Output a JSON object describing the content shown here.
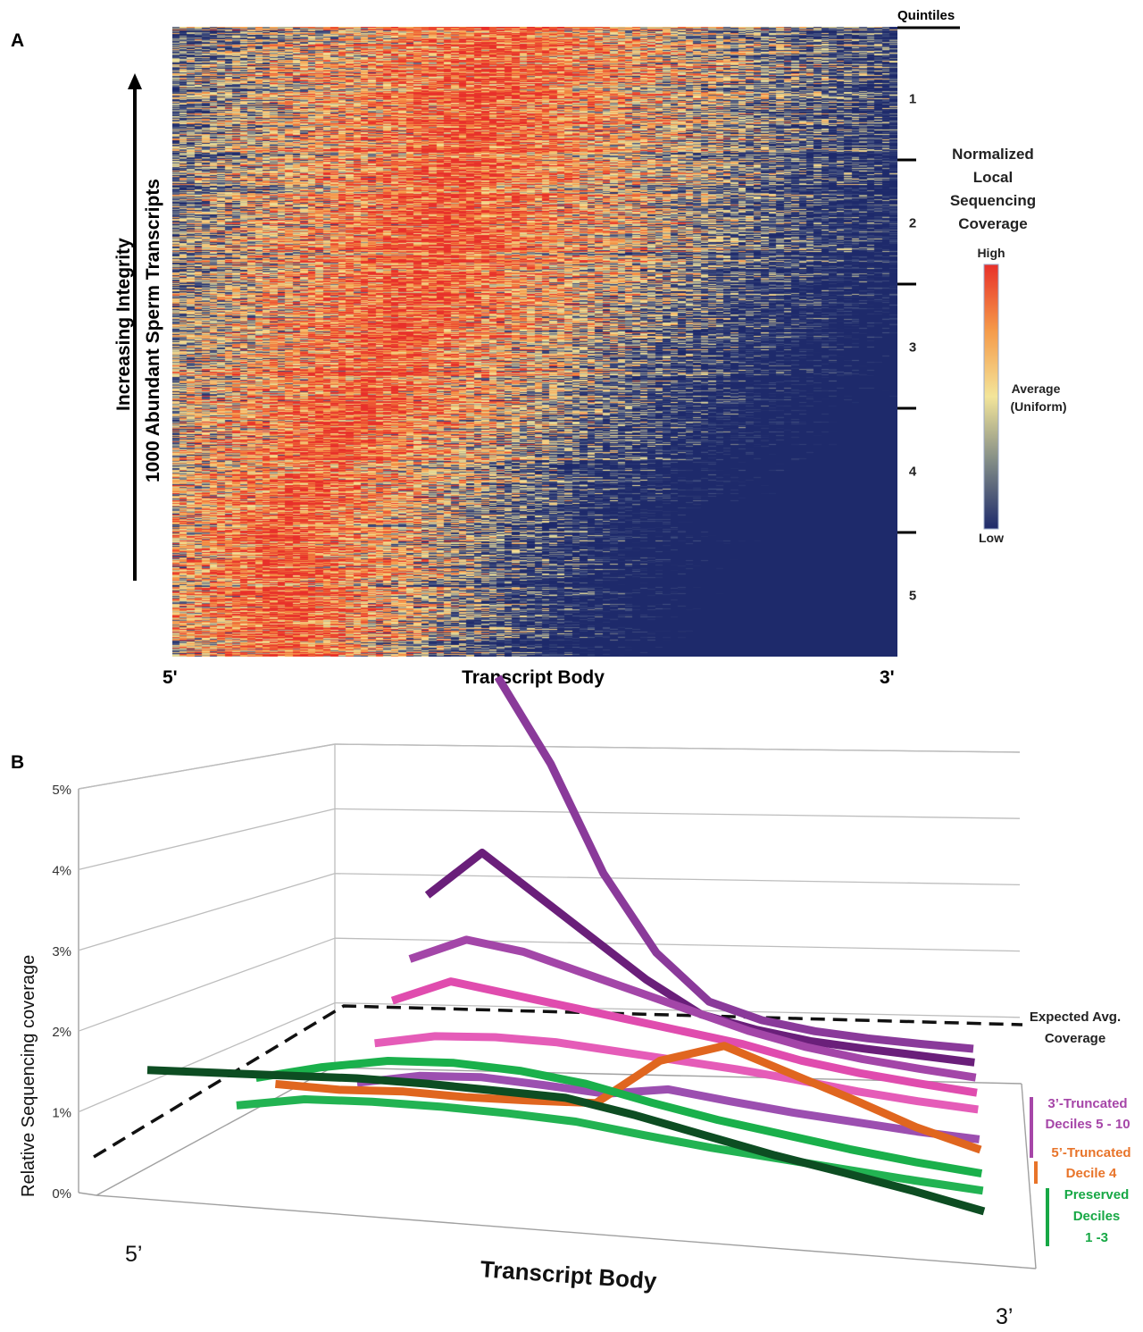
{
  "panel_a": {
    "label": "A",
    "y_axis_label_1": "Increasing Integrity",
    "y_axis_label_2": "1000 Abundant Sperm Transcripts",
    "x_label_left": "5'",
    "x_label_center": "Transcript Body",
    "x_label_right": "3'",
    "quintiles_title": "Quintiles",
    "quintile_labels": [
      "1",
      "2",
      "3",
      "4",
      "5"
    ],
    "legend_title_lines": [
      "Normalized",
      "Local",
      "Sequencing",
      "Coverage"
    ],
    "legend_high": "High",
    "legend_avg_1": "Average",
    "legend_avg_2": "(Uniform)",
    "legend_low": "Low",
    "colors": {
      "low": "#1e2a6b",
      "mid": "#f3e59a",
      "high": "#e8302a"
    }
  },
  "panel_b": {
    "label": "B",
    "y_axis_label": "Relative Sequencing coverage",
    "y_ticks": [
      "0%",
      "1%",
      "2%",
      "3%",
      "4%",
      "5%"
    ],
    "x_label_left": "5’",
    "x_label_center": "Transcript Body",
    "x_label_right": "3’",
    "expected_label_1": "Expected Avg.",
    "expected_label_2": "Coverage",
    "groups": [
      {
        "lines": [
          "3’-Truncated",
          "Deciles 5 - 10"
        ],
        "color": "#a646a8"
      },
      {
        "lines": [
          "5’-Truncated",
          "Decile 4"
        ],
        "color": "#e8742a"
      },
      {
        "lines": [
          "Preserved",
          "Deciles",
          "1 -3"
        ],
        "color": "#17a845"
      }
    ]
  },
  "chart_data": [
    {
      "type": "heatmap",
      "title": "",
      "xlabel": "Transcript Body",
      "ylabel": "Increasing Integrity / 1000 Abundant Sperm Transcripts",
      "x_ticks": [
        "5'",
        "3'"
      ],
      "row_groups": [
        "1",
        "2",
        "3",
        "4",
        "5"
      ],
      "row_groups_title": "Quintiles",
      "n_rows": 1000,
      "color_scale": [
        "Low",
        "Average (Uniform)",
        "High"
      ],
      "legend_title": "Normalized Local Sequencing Coverage",
      "quintile_peak_position": [
        0.45,
        0.4,
        0.35,
        0.25,
        0.15
      ]
    },
    {
      "type": "line",
      "title": "",
      "xlabel": "Transcript Body",
      "ylabel": "Relative Sequencing coverage",
      "ylim": [
        0,
        5
      ],
      "y_unit": "%",
      "x_ticks": [
        "5’",
        "3’"
      ],
      "x": [
        1,
        2,
        3,
        4,
        5,
        6,
        7,
        8,
        9,
        10,
        11,
        12,
        13
      ],
      "expected_average": 1,
      "series": [
        {
          "group": "3’-Truncated Deciles 5 - 10",
          "color": "#8a3a9a",
          "values": [
            null,
            null,
            null,
            5.1,
            4.0,
            2.6,
            1.6,
            1.0,
            0.8,
            0.7,
            0.65,
            0.62,
            0.6
          ]
        },
        {
          "group": "3’-Truncated Deciles 5 - 10",
          "color": "#6a1f7a",
          "values": [
            null,
            null,
            2.3,
            2.9,
            2.4,
            1.9,
            1.4,
            1.0,
            0.85,
            0.75,
            0.7,
            0.66,
            0.62
          ]
        },
        {
          "group": "3’-Truncated Deciles 5 - 10",
          "color": "#a346a8",
          "values": [
            null,
            null,
            1.6,
            1.9,
            1.8,
            1.6,
            1.4,
            1.2,
            1.0,
            0.85,
            0.75,
            0.68,
            0.62
          ]
        },
        {
          "group": "3’-Truncated Deciles 5 - 10",
          "color": "#e04cae",
          "values": [
            null,
            null,
            1.2,
            1.5,
            1.4,
            1.3,
            1.2,
            1.1,
            1.0,
            0.85,
            0.75,
            0.68,
            0.62
          ]
        },
        {
          "group": "3’-Truncated Deciles 5 - 10",
          "color": "#e55cb8",
          "values": [
            null,
            null,
            0.8,
            0.95,
            1.0,
            1.0,
            0.95,
            0.9,
            0.85,
            0.78,
            0.7,
            0.64,
            0.6
          ]
        },
        {
          "group": "3’-Truncated Deciles 5 - 10",
          "color": "#9c4fb0",
          "values": [
            null,
            null,
            0.45,
            0.6,
            0.65,
            0.62,
            0.58,
            0.7,
            0.62,
            0.55,
            0.5,
            0.45,
            0.42
          ]
        },
        {
          "group": "5’-Truncated Decile 4",
          "color": "#e0661f",
          "values": [
            null,
            0.5,
            0.5,
            0.55,
            0.55,
            0.58,
            0.62,
            1.2,
            1.45,
            1.2,
            0.95,
            0.68,
            0.48
          ]
        },
        {
          "group": "Preserved Deciles 1 -3",
          "color": "#1ab04b",
          "values": [
            null,
            0.7,
            0.9,
            1.05,
            1.1,
            1.08,
            1.0,
            0.85,
            0.72,
            0.62,
            0.52,
            0.44,
            0.38
          ]
        },
        {
          "group": "Preserved Deciles 1 -3",
          "color": "#22b352",
          "values": [
            null,
            0.5,
            0.65,
            0.7,
            0.72,
            0.72,
            0.7,
            0.62,
            0.55,
            0.5,
            0.45,
            0.4,
            0.36
          ]
        },
        {
          "group": "Preserved Deciles 1 -3",
          "color": "#0d4d22",
          "values": [
            0.95,
            1.0,
            1.05,
            1.1,
            1.12,
            1.12,
            1.12,
            1.0,
            0.85,
            0.7,
            0.58,
            0.45,
            0.3
          ]
        }
      ]
    }
  ]
}
